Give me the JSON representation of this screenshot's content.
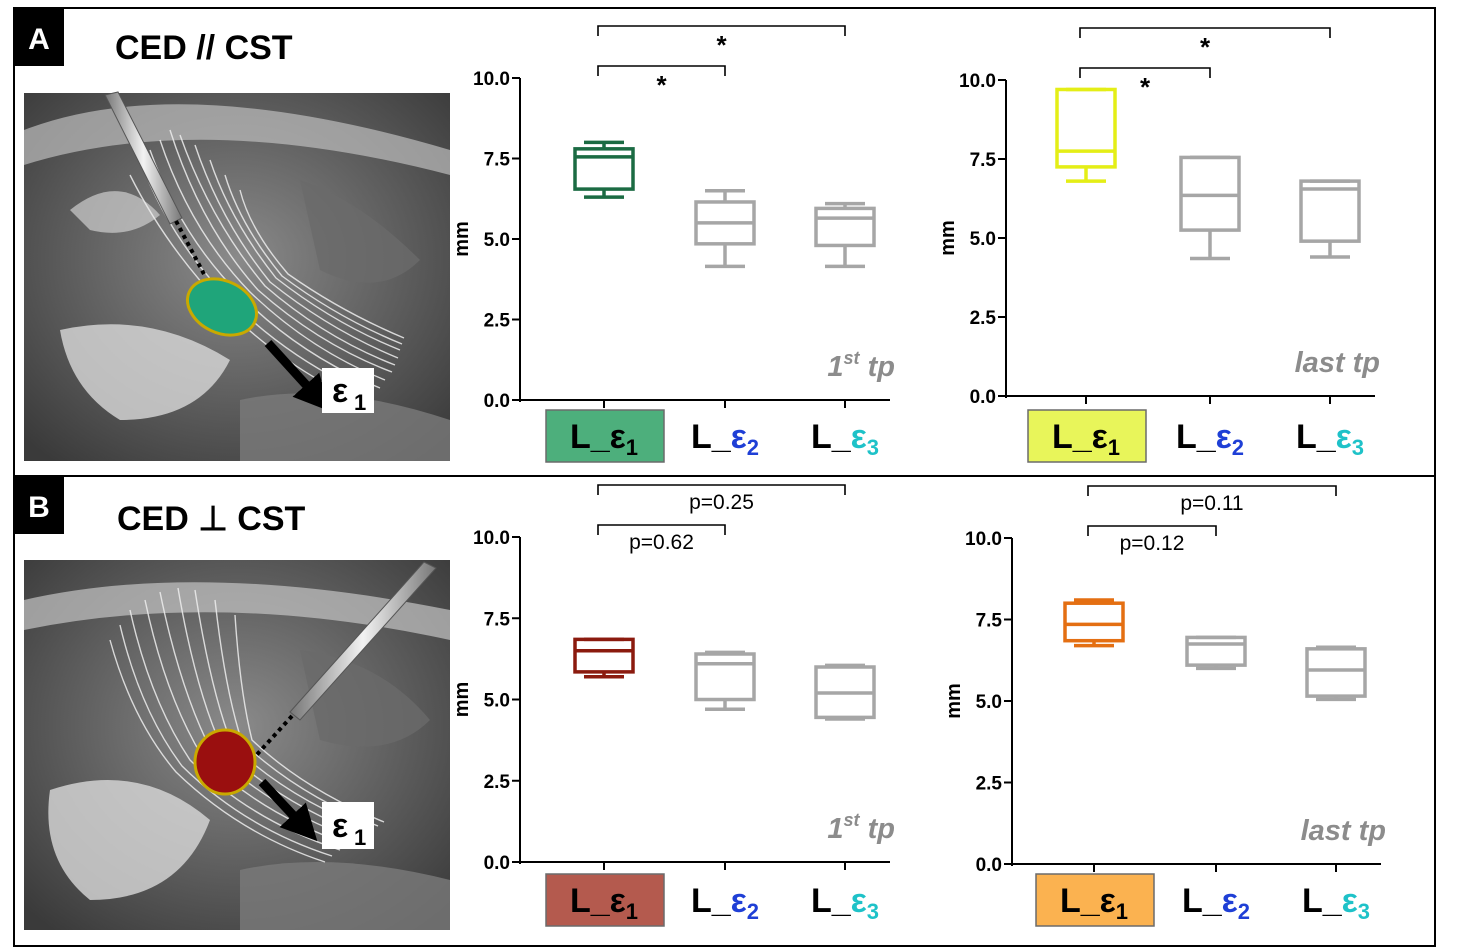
{
  "panels": [
    {
      "letter": "A",
      "title": "CED // CST",
      "epsilon_label": "ε",
      "epsilon_sub": "1",
      "tumor_color": "#1fa57a",
      "charts": [
        {
          "tp_main": "1",
          "tp_sup": "st",
          "tp_rest": " tp",
          "ylabel": "mm",
          "ylim": [
            0,
            10
          ],
          "yticks": [
            "0.0",
            "2.5",
            "5.0",
            "7.5",
            "10.0"
          ],
          "comparisons": [
            {
              "from": 0,
              "to": 1,
              "label": "*"
            },
            {
              "from": 0,
              "to": 2,
              "label": "*"
            }
          ],
          "boxes": [
            {
              "min": 6.3,
              "q1": 6.55,
              "median": 7.55,
              "q3": 7.8,
              "max": 8.0,
              "color": "#1b6b43"
            },
            {
              "min": 4.15,
              "q1": 4.85,
              "median": 5.5,
              "q3": 6.15,
              "max": 6.5,
              "color": "#a6a6a6"
            },
            {
              "min": 4.15,
              "q1": 4.8,
              "median": 5.65,
              "q3": 5.95,
              "max": 6.1,
              "color": "#a6a6a6"
            }
          ],
          "categories": [
            {
              "prefix": "L_",
              "eps": "ε",
              "sub": "1",
              "eps_color": "#000000",
              "bg": "#4daf7c"
            },
            {
              "prefix": "L_",
              "eps": "ε",
              "sub": "2",
              "eps_color": "#1f3fd6",
              "bg": ""
            },
            {
              "prefix": "L_",
              "eps": "ε",
              "sub": "3",
              "eps_color": "#1ec2c8",
              "bg": ""
            }
          ]
        },
        {
          "tp_main": "last",
          "tp_sup": "",
          "tp_rest": " tp",
          "ylabel": "mm",
          "ylim": [
            0,
            10
          ],
          "yticks": [
            "0.0",
            "2.5",
            "5.0",
            "7.5",
            "10.0"
          ],
          "comparisons": [
            {
              "from": 0,
              "to": 1,
              "label": "*"
            },
            {
              "from": 0,
              "to": 2,
              "label": "*"
            }
          ],
          "boxes": [
            {
              "min": 6.8,
              "q1": 7.25,
              "median": 7.75,
              "q3": 9.7,
              "max": 9.7,
              "color": "#e4ee16"
            },
            {
              "min": 4.35,
              "q1": 5.25,
              "median": 6.35,
              "q3": 7.55,
              "max": 7.55,
              "color": "#a6a6a6"
            },
            {
              "min": 4.4,
              "q1": 4.9,
              "median": 6.55,
              "q3": 6.8,
              "max": 6.8,
              "color": "#a6a6a6"
            }
          ],
          "categories": [
            {
              "prefix": "L_",
              "eps": "ε",
              "sub": "1",
              "eps_color": "#000000",
              "bg": "#e8f55a"
            },
            {
              "prefix": "L_",
              "eps": "ε",
              "sub": "2",
              "eps_color": "#1f3fd6",
              "bg": ""
            },
            {
              "prefix": "L_",
              "eps": "ε",
              "sub": "3",
              "eps_color": "#1ec2c8",
              "bg": ""
            }
          ]
        }
      ]
    },
    {
      "letter": "B",
      "title": "CED ⊥ CST",
      "epsilon_label": "ε",
      "epsilon_sub": "1",
      "tumor_color": "#9a0f0f",
      "charts": [
        {
          "tp_main": "1",
          "tp_sup": "st",
          "tp_rest": " tp",
          "ylabel": "mm",
          "ylim": [
            0,
            10
          ],
          "yticks": [
            "0.0",
            "2.5",
            "5.0",
            "7.5",
            "10.0"
          ],
          "comparisons": [
            {
              "from": 0,
              "to": 1,
              "label": "p=0.62"
            },
            {
              "from": 0,
              "to": 2,
              "label": "p=0.25"
            }
          ],
          "boxes": [
            {
              "min": 5.7,
              "q1": 5.85,
              "median": 6.5,
              "q3": 6.85,
              "max": 6.85,
              "color": "#8b1a0e"
            },
            {
              "min": 4.7,
              "q1": 5.0,
              "median": 6.1,
              "q3": 6.4,
              "max": 6.45,
              "color": "#a6a6a6"
            },
            {
              "min": 4.4,
              "q1": 4.45,
              "median": 5.2,
              "q3": 6.0,
              "max": 6.05,
              "color": "#a6a6a6"
            }
          ],
          "categories": [
            {
              "prefix": "L_",
              "eps": "ε",
              "sub": "1",
              "eps_color": "#000000",
              "bg": "#b45a4e"
            },
            {
              "prefix": "L_",
              "eps": "ε",
              "sub": "2",
              "eps_color": "#1f3fd6",
              "bg": ""
            },
            {
              "prefix": "L_",
              "eps": "ε",
              "sub": "3",
              "eps_color": "#1ec2c8",
              "bg": ""
            }
          ]
        },
        {
          "tp_main": "last",
          "tp_sup": "",
          "tp_rest": " tp",
          "ylabel": "mm",
          "ylim": [
            0,
            10
          ],
          "yticks": [
            "0.0",
            "2.5",
            "5.0",
            "7.5",
            "10.0"
          ],
          "comparisons": [
            {
              "from": 0,
              "to": 1,
              "label": "p=0.12"
            },
            {
              "from": 0,
              "to": 2,
              "label": "p=0.11"
            }
          ],
          "boxes": [
            {
              "min": 6.7,
              "q1": 6.85,
              "median": 7.35,
              "q3": 8.0,
              "max": 8.1,
              "color": "#e46f12"
            },
            {
              "min": 6.0,
              "q1": 6.1,
              "median": 6.75,
              "q3": 6.95,
              "max": 6.95,
              "color": "#a6a6a6"
            },
            {
              "min": 5.05,
              "q1": 5.15,
              "median": 5.95,
              "q3": 6.6,
              "max": 6.65,
              "color": "#a6a6a6"
            }
          ],
          "categories": [
            {
              "prefix": "L_",
              "eps": "ε",
              "sub": "1",
              "eps_color": "#000000",
              "bg": "#fbb250"
            },
            {
              "prefix": "L_",
              "eps": "ε",
              "sub": "2",
              "eps_color": "#1f3fd6",
              "bg": ""
            },
            {
              "prefix": "L_",
              "eps": "ε",
              "sub": "3",
              "eps_color": "#1ec2c8",
              "bg": ""
            }
          ]
        }
      ]
    }
  ],
  "chart_data": [
    {
      "type": "box",
      "panel": "A",
      "timepoint": "1st tp",
      "ylabel": "mm",
      "ylim": [
        0,
        10
      ],
      "categories": [
        "L_ε1",
        "L_ε2",
        "L_ε3"
      ],
      "boxes": [
        {
          "min": 6.3,
          "q1": 6.55,
          "median": 7.55,
          "q3": 7.8,
          "max": 8.0
        },
        {
          "min": 4.15,
          "q1": 4.85,
          "median": 5.5,
          "q3": 6.15,
          "max": 6.5
        },
        {
          "min": 4.15,
          "q1": 4.8,
          "median": 5.65,
          "q3": 5.95,
          "max": 6.1
        }
      ],
      "annotations": [
        "*",
        "*"
      ]
    },
    {
      "type": "box",
      "panel": "A",
      "timepoint": "last tp",
      "ylabel": "mm",
      "ylim": [
        0,
        10
      ],
      "categories": [
        "L_ε1",
        "L_ε2",
        "L_ε3"
      ],
      "boxes": [
        {
          "min": 6.8,
          "q1": 7.25,
          "median": 7.75,
          "q3": 9.7,
          "max": 9.7
        },
        {
          "min": 4.35,
          "q1": 5.25,
          "median": 6.35,
          "q3": 7.55,
          "max": 7.55
        },
        {
          "min": 4.4,
          "q1": 4.9,
          "median": 6.55,
          "q3": 6.8,
          "max": 6.8
        }
      ],
      "annotations": [
        "*",
        "*"
      ]
    },
    {
      "type": "box",
      "panel": "B",
      "timepoint": "1st tp",
      "ylabel": "mm",
      "ylim": [
        0,
        10
      ],
      "categories": [
        "L_ε1",
        "L_ε2",
        "L_ε3"
      ],
      "boxes": [
        {
          "min": 5.7,
          "q1": 5.85,
          "median": 6.5,
          "q3": 6.85,
          "max": 6.85
        },
        {
          "min": 4.7,
          "q1": 5.0,
          "median": 6.1,
          "q3": 6.4,
          "max": 6.45
        },
        {
          "min": 4.4,
          "q1": 4.45,
          "median": 5.2,
          "q3": 6.0,
          "max": 6.05
        }
      ],
      "annotations": [
        "p=0.62",
        "p=0.25"
      ]
    },
    {
      "type": "box",
      "panel": "B",
      "timepoint": "last tp",
      "ylabel": "mm",
      "ylim": [
        0,
        10
      ],
      "categories": [
        "L_ε1",
        "L_ε2",
        "L_ε3"
      ],
      "boxes": [
        {
          "min": 6.7,
          "q1": 6.85,
          "median": 7.35,
          "q3": 8.0,
          "max": 8.1
        },
        {
          "min": 6.0,
          "q1": 6.1,
          "median": 6.75,
          "q3": 6.95,
          "max": 6.95
        },
        {
          "min": 5.05,
          "q1": 5.15,
          "median": 5.95,
          "q3": 6.6,
          "max": 6.65
        }
      ],
      "annotations": [
        "p=0.12",
        "p=0.11"
      ]
    }
  ]
}
